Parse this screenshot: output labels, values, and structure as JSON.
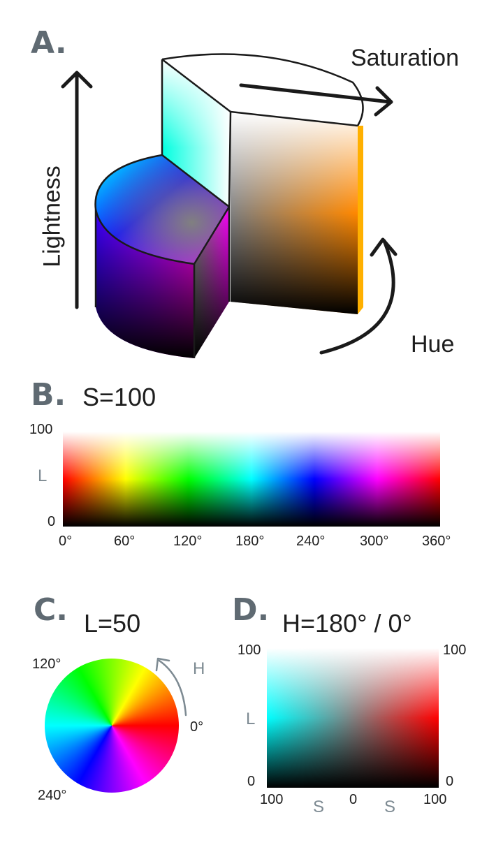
{
  "colors": {
    "text": "#1e1e1e",
    "panel_letter": "#5f6a72",
    "axis_gray": "#7d8a92",
    "outline": "#1a1a1a"
  },
  "panel_a": {
    "letter": "A.",
    "lightness_label": "Lightness",
    "saturation_label": "Saturation",
    "hue_label": "Hue"
  },
  "panel_b": {
    "letter": "B.",
    "title": "S=100",
    "y_axis_label": "L",
    "y_top": "100",
    "y_bottom": "0",
    "x_ticks": [
      "0°",
      "60°",
      "120°",
      "180°",
      "240°",
      "300°",
      "360°"
    ]
  },
  "panel_c": {
    "letter": "C.",
    "title": "L=50",
    "label_120": "120°",
    "label_0": "0°",
    "label_240": "240°",
    "arrow_label": "H"
  },
  "panel_d": {
    "letter": "D.",
    "title": "H=180° / 0°",
    "left_top": "100",
    "left_bottom": "0",
    "right_top": "100",
    "right_bottom": "0",
    "y_axis_label": "L",
    "x_left": "100",
    "x_center": "0",
    "x_right": "100",
    "x_axis_label_left": "S",
    "x_axis_label_right": "S"
  }
}
